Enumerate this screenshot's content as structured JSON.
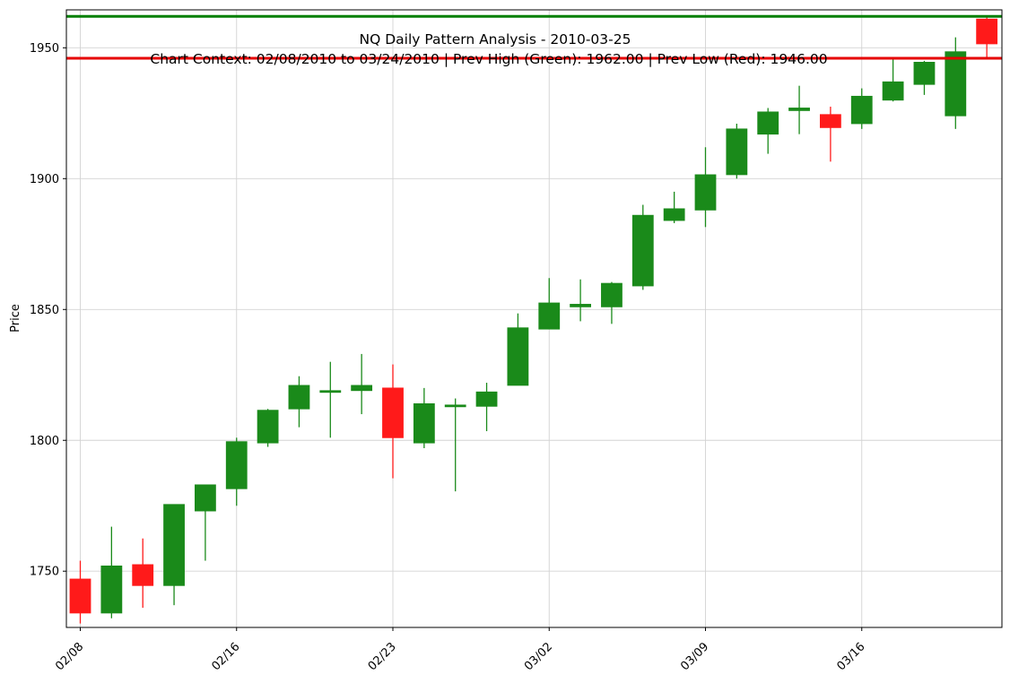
{
  "chart_data": {
    "type": "candlestick",
    "title": "NQ Daily Pattern Analysis - 2010-03-25",
    "subtitle": "Chart Context: 02/08/2010 to 03/24/2010 | Prev High (Green): 1962.00 | Prev Low (Red): 1946.00",
    "xlabel": "",
    "ylabel": "Price",
    "ylim": [
      1728.5,
      1964.5
    ],
    "yticks": [
      1750,
      1800,
      1850,
      1900,
      1950
    ],
    "xticks": [
      {
        "index": 0,
        "label": "02/08"
      },
      {
        "index": 5,
        "label": "02/16"
      },
      {
        "index": 10,
        "label": "02/23"
      },
      {
        "index": 15,
        "label": "03/02"
      },
      {
        "index": 20,
        "label": "03/09"
      },
      {
        "index": 25,
        "label": "03/16"
      }
    ],
    "grid": true,
    "colors": {
      "up": "#1a8a1a",
      "down": "#ff1a1a",
      "high_line": "#007f00",
      "low_line": "#e60000",
      "grid": "#d3d3d3"
    },
    "hlines": [
      {
        "label": "Prev High",
        "value": 1962.0,
        "color": "#007f00"
      },
      {
        "label": "Prev Low",
        "value": 1946.0,
        "color": "#e60000"
      }
    ],
    "candles": [
      {
        "open": 1747,
        "high": 1754,
        "low": 1730,
        "close": 1734
      },
      {
        "open": 1734,
        "high": 1767,
        "low": 1732,
        "close": 1752
      },
      {
        "open": 1752.5,
        "high": 1762.5,
        "low": 1736,
        "close": 1744.5
      },
      {
        "open": 1744.5,
        "high": 1775.5,
        "low": 1737,
        "close": 1775.5
      },
      {
        "open": 1773,
        "high": 1783,
        "low": 1754,
        "close": 1783
      },
      {
        "open": 1781.5,
        "high": 1801,
        "low": 1775,
        "close": 1799.5
      },
      {
        "open": 1799,
        "high": 1812,
        "low": 1797.5,
        "close": 1811.5
      },
      {
        "open": 1812,
        "high": 1824.5,
        "low": 1805,
        "close": 1821
      },
      {
        "open": 1819,
        "high": 1830,
        "low": 1801,
        "close": 1819
      },
      {
        "open": 1819,
        "high": 1833,
        "low": 1810,
        "close": 1821
      },
      {
        "open": 1820,
        "high": 1829,
        "low": 1785.5,
        "close": 1801
      },
      {
        "open": 1799,
        "high": 1820,
        "low": 1797,
        "close": 1814
      },
      {
        "open": 1813,
        "high": 1816,
        "low": 1780.5,
        "close": 1813.5
      },
      {
        "open": 1813,
        "high": 1822,
        "low": 1803.5,
        "close": 1818.5
      },
      {
        "open": 1821,
        "high": 1848.5,
        "low": 1821,
        "close": 1843
      },
      {
        "open": 1842.5,
        "high": 1862,
        "low": 1842.5,
        "close": 1852.5
      },
      {
        "open": 1851,
        "high": 1861.5,
        "low": 1845.5,
        "close": 1852
      },
      {
        "open": 1851,
        "high": 1860.5,
        "low": 1844.5,
        "close": 1860
      },
      {
        "open": 1859,
        "high": 1890,
        "low": 1857.5,
        "close": 1886
      },
      {
        "open": 1884,
        "high": 1895,
        "low": 1883,
        "close": 1888.5
      },
      {
        "open": 1888,
        "high": 1912,
        "low": 1881.5,
        "close": 1901.5
      },
      {
        "open": 1901.5,
        "high": 1921,
        "low": 1900,
        "close": 1919
      },
      {
        "open": 1917,
        "high": 1927,
        "low": 1909.5,
        "close": 1925.5
      },
      {
        "open": 1926,
        "high": 1935.5,
        "low": 1917,
        "close": 1927
      },
      {
        "open": 1924.5,
        "high": 1927.5,
        "low": 1906.5,
        "close": 1919.5
      },
      {
        "open": 1921,
        "high": 1934.5,
        "low": 1919,
        "close": 1931.5
      },
      {
        "open": 1930,
        "high": 1946,
        "low": 1929.5,
        "close": 1937
      },
      {
        "open": 1936,
        "high": 1945,
        "low": 1932,
        "close": 1944.5
      },
      {
        "open": 1924,
        "high": 1954,
        "low": 1919,
        "close": 1948.5
      },
      {
        "open": 1961,
        "high": 1962,
        "low": 1946,
        "close": 1951.5
      }
    ]
  }
}
